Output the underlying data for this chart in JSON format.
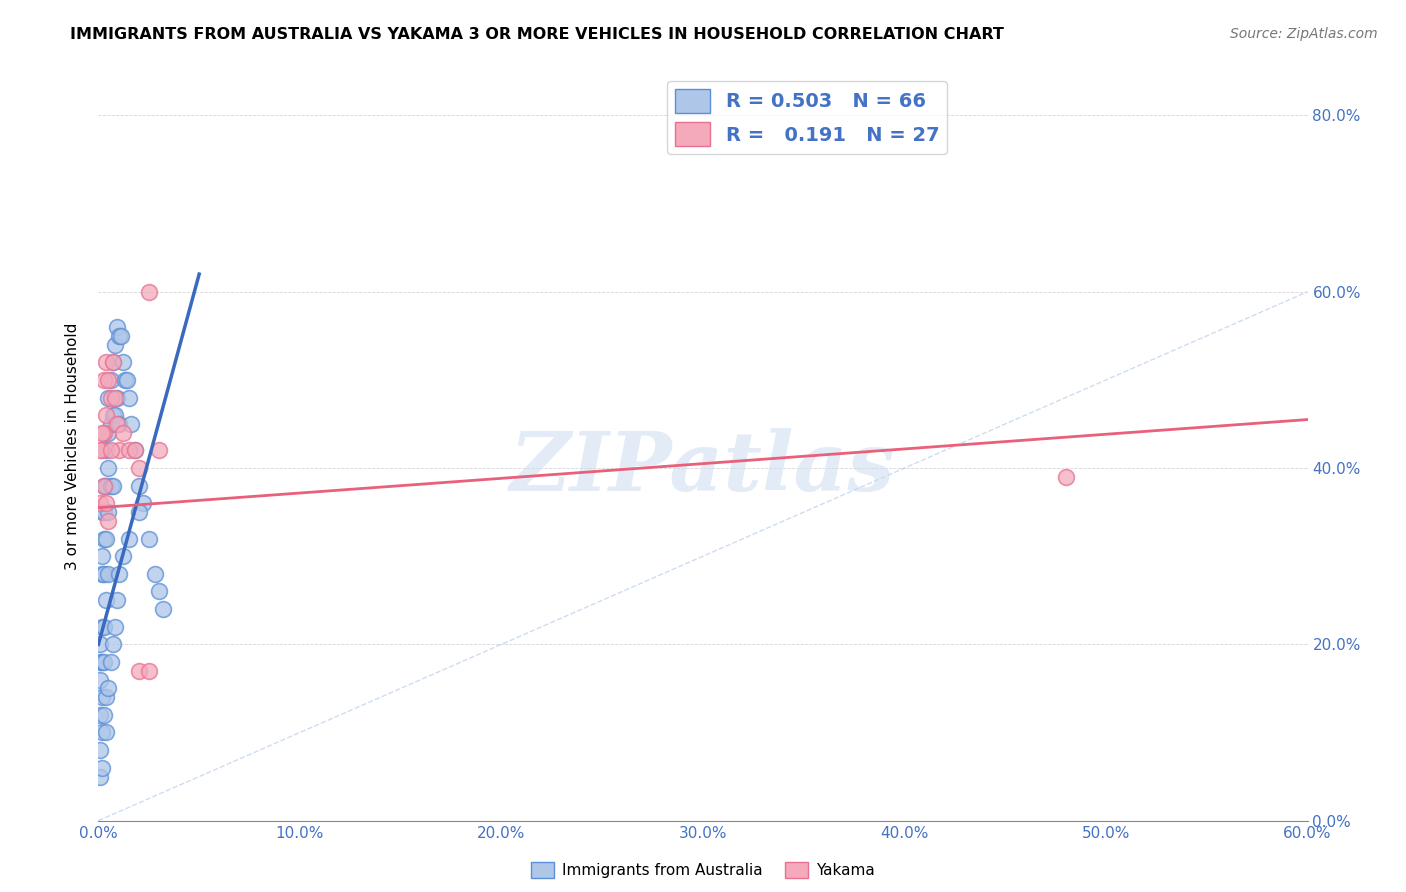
{
  "title": "IMMIGRANTS FROM AUSTRALIA VS YAKAMA 3 OR MORE VEHICLES IN HOUSEHOLD CORRELATION CHART",
  "source": "Source: ZipAtlas.com",
  "xlim": [
    0.0,
    0.6
  ],
  "ylim": [
    0.0,
    0.85
  ],
  "ylabel": "3 or more Vehicles in Household",
  "legend1_label": "Immigrants from Australia",
  "legend2_label": "Yakama",
  "R1": 0.503,
  "N1": 66,
  "R2": 0.191,
  "N2": 27,
  "color_blue": "#aec6e8",
  "color_pink": "#f4aabb",
  "edge_blue": "#5b8ed6",
  "edge_pink": "#e87090",
  "line_blue": "#3a6abf",
  "line_pink": "#e8607a",
  "line_diag_color": "#aec6e8",
  "watermark": "ZIPatlas",
  "blue_scatter_x": [
    0.001,
    0.001,
    0.001,
    0.001,
    0.002,
    0.002,
    0.002,
    0.002,
    0.002,
    0.002,
    0.003,
    0.003,
    0.003,
    0.003,
    0.003,
    0.003,
    0.004,
    0.004,
    0.004,
    0.004,
    0.005,
    0.005,
    0.005,
    0.005,
    0.005,
    0.006,
    0.006,
    0.006,
    0.007,
    0.007,
    0.007,
    0.008,
    0.008,
    0.009,
    0.009,
    0.01,
    0.01,
    0.011,
    0.012,
    0.013,
    0.014,
    0.015,
    0.016,
    0.018,
    0.02,
    0.022,
    0.025,
    0.028,
    0.03,
    0.032,
    0.001,
    0.001,
    0.002,
    0.002,
    0.003,
    0.004,
    0.004,
    0.005,
    0.006,
    0.007,
    0.008,
    0.009,
    0.01,
    0.012,
    0.015,
    0.02
  ],
  "blue_scatter_y": [
    0.2,
    0.18,
    0.16,
    0.12,
    0.35,
    0.3,
    0.28,
    0.22,
    0.18,
    0.14,
    0.38,
    0.35,
    0.32,
    0.28,
    0.22,
    0.18,
    0.42,
    0.38,
    0.32,
    0.25,
    0.48,
    0.44,
    0.4,
    0.35,
    0.28,
    0.5,
    0.45,
    0.38,
    0.52,
    0.46,
    0.38,
    0.54,
    0.46,
    0.56,
    0.48,
    0.55,
    0.45,
    0.55,
    0.52,
    0.5,
    0.5,
    0.48,
    0.45,
    0.42,
    0.38,
    0.36,
    0.32,
    0.28,
    0.26,
    0.24,
    0.08,
    0.05,
    0.1,
    0.06,
    0.12,
    0.14,
    0.1,
    0.15,
    0.18,
    0.2,
    0.22,
    0.25,
    0.28,
    0.3,
    0.32,
    0.35
  ],
  "pink_scatter_x": [
    0.001,
    0.002,
    0.003,
    0.003,
    0.004,
    0.004,
    0.005,
    0.006,
    0.007,
    0.008,
    0.009,
    0.01,
    0.012,
    0.015,
    0.018,
    0.02,
    0.025,
    0.03,
    0.001,
    0.002,
    0.003,
    0.004,
    0.005,
    0.006,
    0.02,
    0.025,
    0.48
  ],
  "pink_scatter_y": [
    0.36,
    0.42,
    0.44,
    0.5,
    0.46,
    0.52,
    0.5,
    0.48,
    0.52,
    0.48,
    0.45,
    0.42,
    0.44,
    0.42,
    0.42,
    0.4,
    0.6,
    0.42,
    0.42,
    0.44,
    0.38,
    0.36,
    0.34,
    0.42,
    0.17,
    0.17,
    0.39
  ],
  "blue_line_x": [
    0.0,
    0.05
  ],
  "blue_line_y": [
    0.2,
    0.62
  ],
  "pink_line_x": [
    0.0,
    0.6
  ],
  "pink_line_y": [
    0.355,
    0.455
  ],
  "diag_line_x": [
    0.0,
    0.6
  ],
  "diag_line_y": [
    0.0,
    0.6
  ],
  "x_ticks": [
    0.0,
    0.1,
    0.2,
    0.3,
    0.4,
    0.5,
    0.6
  ],
  "x_tick_labels": [
    "0.0%",
    "10.0%",
    "20.0%",
    "30.0%",
    "40.0%",
    "50.0%",
    "60.0%"
  ],
  "y_ticks": [
    0.0,
    0.2,
    0.4,
    0.6,
    0.8
  ],
  "y_tick_labels": [
    "0.0%",
    "20.0%",
    "40.0%",
    "60.0%",
    "80.0%"
  ]
}
